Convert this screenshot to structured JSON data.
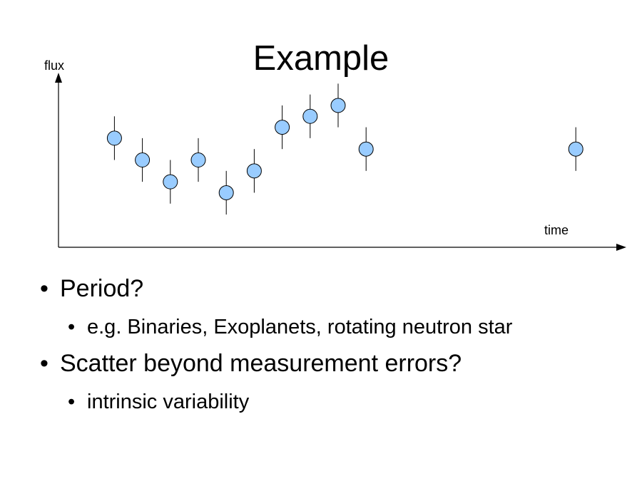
{
  "slide": {
    "title": "Example",
    "bullets": [
      {
        "text": "Period?",
        "sub": [
          "e.g. Binaries, Exoplanets, rotating neutron star"
        ]
      },
      {
        "text": "Scatter beyond measurement errors?",
        "sub": [
          "intrinsic variability"
        ]
      }
    ]
  },
  "chart_data": {
    "type": "scatter",
    "xlabel": "time",
    "ylabel": "flux",
    "grid": false,
    "error_bars": true,
    "marker_fill": "#99ccff",
    "marker_stroke": "#000000",
    "x": [
      2,
      3,
      4,
      5,
      6,
      7,
      8,
      9,
      10,
      11,
      18.5
    ],
    "y": [
      7,
      5,
      3,
      5,
      2,
      4,
      8,
      9,
      10,
      6,
      6
    ],
    "error": [
      2,
      2,
      2,
      2,
      2,
      2,
      2,
      2,
      2,
      2,
      2
    ],
    "xlim": [
      0,
      20
    ],
    "ylim": [
      -3,
      13
    ]
  }
}
